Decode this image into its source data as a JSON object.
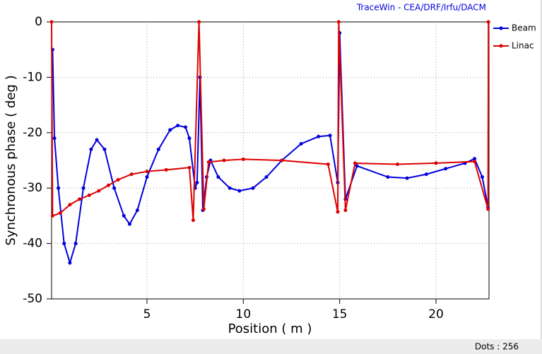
{
  "chart_data": {
    "type": "line",
    "title": "TraceWin - CEA/DRF/Irfu/DACM",
    "x_label": "Position ( m )",
    "y_label": "Synchronous phase ( deg )",
    "status": "Dots : 256",
    "xlim": [
      0.05,
      22.75
    ],
    "ylim": [
      -50,
      0
    ],
    "xticks": [
      5,
      10,
      15,
      20
    ],
    "yticks": [
      0,
      -10,
      -20,
      -30,
      -40,
      -50
    ],
    "grid": true,
    "legend": "top-right",
    "series": [
      {
        "name": "Beam",
        "color": "#0000dd",
        "x": [
          0.1,
          0.2,
          0.4,
          0.7,
          1.0,
          1.3,
          1.7,
          2.1,
          2.4,
          2.8,
          3.3,
          3.8,
          4.1,
          4.5,
          5.0,
          5.6,
          6.2,
          6.6,
          7.0,
          7.2,
          7.5,
          7.6,
          7.75,
          7.9,
          8.1,
          8.3,
          8.7,
          9.3,
          9.8,
          10.5,
          11.2,
          12.0,
          13.0,
          13.9,
          14.5,
          14.9,
          15.0,
          15.3,
          15.9,
          17.5,
          18.5,
          19.5,
          20.5,
          21.5,
          22.0,
          22.4,
          22.7
        ],
        "values": [
          -5,
          -21,
          -30,
          -40,
          -43.5,
          -40,
          -30,
          -23,
          -21.3,
          -23,
          -30,
          -35,
          -36.5,
          -34,
          -28,
          -23,
          -19.5,
          -18.7,
          -19,
          -21,
          -30,
          -29,
          -10,
          -34,
          -28,
          -25,
          -28,
          -30,
          -30.5,
          -30,
          -28,
          -25,
          -22,
          -20.7,
          -20.5,
          -29,
          -2,
          -32,
          -26,
          -28,
          -28.2,
          -27.5,
          -26.5,
          -25.5,
          -24.7,
          -28,
          -33.5
        ]
      },
      {
        "name": "Linac",
        "color": "#dd0000",
        "x": [
          0.05,
          0.1,
          0.5,
          1.0,
          1.5,
          2.0,
          2.5,
          3.0,
          3.5,
          4.2,
          5.0,
          6.0,
          7.2,
          7.4,
          7.7,
          7.95,
          8.2,
          9.0,
          10.0,
          12.0,
          14.4,
          14.9,
          14.95,
          15.3,
          15.8,
          18.0,
          20.0,
          22.0,
          22.7,
          22.72
        ],
        "values": [
          0,
          -35,
          -34.5,
          -33,
          -32,
          -31.3,
          -30.5,
          -29.5,
          -28.5,
          -27.5,
          -27,
          -26.7,
          -26.3,
          -35.8,
          0,
          -33.8,
          -25.3,
          -25,
          -24.8,
          -25,
          -25.7,
          -34.3,
          0,
          -34,
          -25.5,
          -25.7,
          -25.5,
          -25.2,
          -33.8,
          0
        ]
      }
    ]
  }
}
